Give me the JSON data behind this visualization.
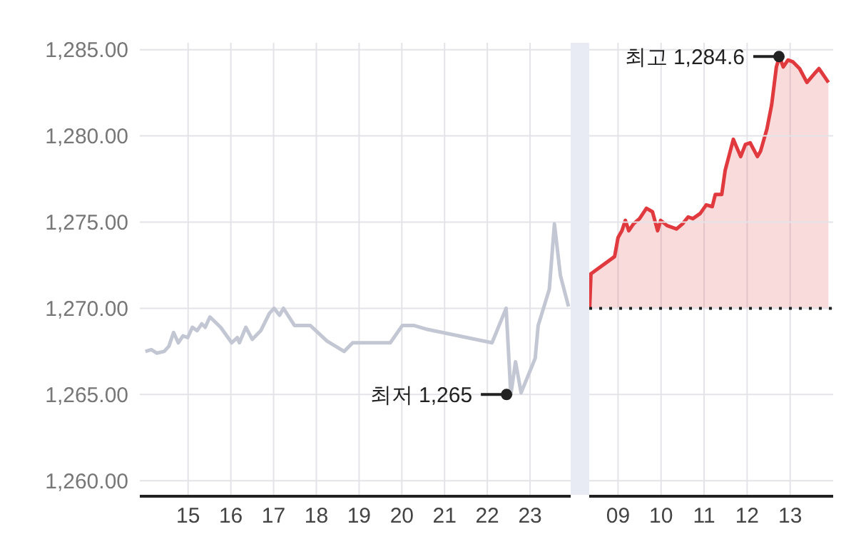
{
  "chart_data": [
    {
      "type": "line",
      "xlim": [
        13.87,
        23.95
      ],
      "ylim": [
        1259.1,
        1285.4
      ],
      "xticks": [
        15,
        16,
        17,
        18,
        19,
        20,
        21,
        22,
        23
      ],
      "yticks": [
        {
          "value": 1260,
          "label": "1,260.00"
        },
        {
          "value": 1265,
          "label": "1,265.00"
        },
        {
          "value": 1270,
          "label": "1,270.00"
        },
        {
          "value": 1275,
          "label": "1,275.00"
        },
        {
          "value": 1280,
          "label": "1,280.00"
        },
        {
          "value": 1285,
          "label": "1,285.00"
        }
      ],
      "grid": true,
      "legend": false,
      "marker": "none",
      "series": [
        {
          "color": "#c3c7d3",
          "x": [
            14.0,
            14.14,
            14.27,
            14.44,
            14.55,
            14.66,
            14.77,
            14.88,
            14.99,
            15.1,
            15.21,
            15.32,
            15.4,
            15.51,
            15.76,
            16.02,
            16.15,
            16.2,
            16.35,
            16.5,
            16.7,
            16.9,
            17.01,
            17.14,
            17.23,
            17.49,
            17.86,
            18.25,
            18.65,
            18.85,
            19.73,
            20.01,
            20.29,
            20.56,
            22.11,
            22.44,
            22.55,
            22.66,
            22.79,
            23.12,
            23.19,
            23.45,
            23.57,
            23.71,
            23.9
          ],
          "values": [
            1267.5,
            1267.6,
            1267.4,
            1267.5,
            1267.8,
            1268.6,
            1268.0,
            1268.4,
            1268.3,
            1268.9,
            1268.7,
            1269.1,
            1268.9,
            1269.5,
            1268.9,
            1268.0,
            1268.3,
            1268.0,
            1268.9,
            1268.2,
            1268.7,
            1269.7,
            1270.0,
            1269.6,
            1270.0,
            1269.0,
            1269.0,
            1268.1,
            1267.5,
            1268.0,
            1268.0,
            1269.0,
            1269.0,
            1268.8,
            1268.0,
            1270.0,
            1265.0,
            1266.9,
            1265.1,
            1267.1,
            1269.0,
            1271.1,
            1274.9,
            1271.9,
            1270.1
          ]
        }
      ],
      "annotations": [
        {
          "text": "최저 1,265",
          "x": 22.45,
          "y": 1265
        }
      ]
    },
    {
      "type": "area",
      "xlim": [
        8.33,
        14.0
      ],
      "ylim": [
        1259.1,
        1285.4
      ],
      "xticks": [
        {
          "value": 9,
          "label": "09"
        },
        {
          "value": 10,
          "label": "10"
        },
        {
          "value": 11,
          "label": "11"
        },
        {
          "value": 12,
          "label": "12"
        },
        {
          "value": 13,
          "label": "13"
        }
      ],
      "yticks": [
        1260,
        1265,
        1270,
        1275,
        1280,
        1285
      ],
      "tick_labels": "x",
      "grid": true,
      "legend": false,
      "marker": "none",
      "series": [
        {
          "color": "#e0393e",
          "x": [
            8.34,
            8.37,
            8.92,
            9.0,
            9.09,
            9.17,
            9.25,
            9.36,
            9.5,
            9.66,
            9.8,
            9.92,
            9.99,
            10.14,
            10.36,
            10.5,
            10.63,
            10.74,
            10.91,
            11.05,
            11.19,
            11.26,
            11.41,
            11.49,
            11.68,
            11.85,
            11.96,
            12.07,
            12.24,
            12.31,
            12.46,
            12.57,
            12.68,
            12.75,
            12.84,
            12.95,
            13.06,
            13.22,
            13.39,
            13.56,
            13.67,
            13.78,
            13.89
          ],
          "values": [
            1270.0,
            1272.0,
            1273.0,
            1274.1,
            1274.5,
            1275.1,
            1274.5,
            1274.9,
            1275.2,
            1275.8,
            1275.6,
            1274.5,
            1275.1,
            1274.8,
            1274.6,
            1274.9,
            1275.3,
            1275.2,
            1275.5,
            1276.0,
            1275.9,
            1276.6,
            1276.6,
            1278.0,
            1279.8,
            1278.8,
            1279.5,
            1279.6,
            1278.8,
            1279.1,
            1280.4,
            1281.8,
            1284.0,
            1284.6,
            1284.0,
            1284.4,
            1284.3,
            1283.9,
            1283.1,
            1283.6,
            1283.9,
            1283.5,
            1283.1
          ]
        }
      ],
      "ref_lines": [
        {
          "axis": "y",
          "value": 1270,
          "color": "#222222",
          "line_style": "dotted"
        }
      ],
      "annotations": [
        {
          "text": "최고 1,284.6",
          "x": 12.74,
          "y": 1284.6
        }
      ]
    }
  ]
}
